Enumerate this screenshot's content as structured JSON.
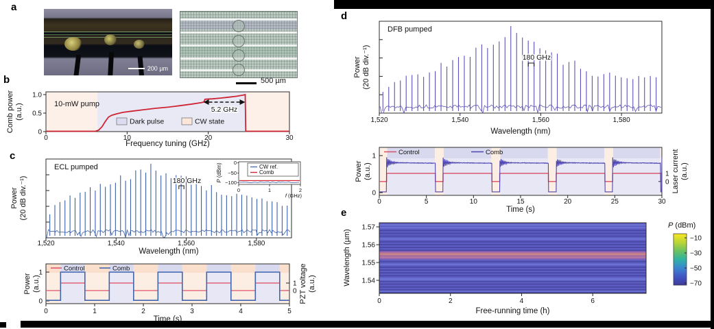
{
  "panels": {
    "a": {
      "letter": "a",
      "scalebar_dark": "200 µm",
      "scalebar_light": "500 µm"
    },
    "b": {
      "letter": "b",
      "ylabel1": "Comb power",
      "ylabel2": "(a.u.)"
    },
    "c": {
      "letter": "c",
      "spec_ylabel1": "Power",
      "spec_ylabel2": "(20 dB div.⁻¹)",
      "time_ylabel1": "Power",
      "time_ylabel2": "(a.u.)",
      "time_right1": "PZT voltage",
      "time_right2": "(a.u.)"
    },
    "d": {
      "letter": "d",
      "spec_ylabel1": "Power",
      "spec_ylabel2": "(20 dB div.⁻¹)",
      "time_ylabel1": "Power",
      "time_ylabel2": "(a.u.)",
      "time_right1": "Laser current",
      "time_right2": "(a.u.)"
    },
    "e": {
      "letter": "e",
      "ylabel": "Wavelength (µm)"
    }
  },
  "chart_data": {
    "comb_power_vs_tuning": {
      "type": "line",
      "xlabel": "Frequency tuning (GHz)",
      "ylabel": "Comb power (a.u.)",
      "xlim": [
        0,
        30
      ],
      "ylim": [
        0,
        1.05
      ],
      "xticks": [
        "0",
        "10",
        "20",
        "30"
      ],
      "yticks": [
        "0",
        "0.5",
        "1.0"
      ],
      "annotation_pump": "10-mW pump",
      "annotation_span": "5.2 GHz",
      "span_from_ghz": 19.4,
      "span_to_ghz": 24.55,
      "legend": [
        {
          "label": "Dark pulse",
          "color": "#dcdcf0"
        },
        {
          "label": "CW state",
          "color": "#fbe6d9"
        }
      ],
      "regions": [
        {
          "state": "CW state",
          "from": 0,
          "to": 6.35,
          "color": "#fdf0e8"
        },
        {
          "state": "Dark pulse",
          "from": 6.35,
          "to": 24.6,
          "color": "#e9e9f6"
        },
        {
          "state": "CW state",
          "from": 24.6,
          "to": 30,
          "color": "#fdf0e8"
        }
      ],
      "series": [
        {
          "name": "Comb power",
          "color": "#cf2332",
          "points": [
            [
              0,
              0.01
            ],
            [
              6.1,
              0.01
            ],
            [
              6.5,
              0.04
            ],
            [
              6.9,
              0.13
            ],
            [
              7.3,
              0.27
            ],
            [
              7.7,
              0.39
            ],
            [
              8.1,
              0.44
            ],
            [
              8.7,
              0.48
            ],
            [
              9.5,
              0.52
            ],
            [
              10.5,
              0.55
            ],
            [
              12,
              0.59
            ],
            [
              13.5,
              0.63
            ],
            [
              15,
              0.66
            ],
            [
              16.5,
              0.7
            ],
            [
              18,
              0.745
            ],
            [
              19.2,
              0.785
            ],
            [
              19.45,
              0.8
            ],
            [
              19.6,
              0.875
            ],
            [
              20.5,
              0.885
            ],
            [
              21.5,
              0.905
            ],
            [
              22.5,
              0.93
            ],
            [
              23.5,
              0.955
            ],
            [
              24.3,
              0.985
            ],
            [
              24.55,
              1.0
            ],
            [
              24.62,
              0.01
            ],
            [
              30,
              0.01
            ]
          ]
        }
      ]
    },
    "ecl_spectrum": {
      "type": "spectrum",
      "label": "ECL pumped",
      "annotation": "180 GHz",
      "xlabel": "Wavelength (nm)",
      "ylabel": "Power (20 dB div.⁻¹)",
      "xlim": [
        1520,
        1590
      ],
      "xticks": [
        {
          "v": 1520,
          "t": "1,520"
        },
        {
          "v": 1540,
          "t": "1,540"
        },
        {
          "v": 1560,
          "t": "1,560"
        },
        {
          "v": 1580,
          "t": "1,580"
        }
      ],
      "line_color": "#3b5fa9",
      "comb": {
        "start_nm": 1521.1,
        "spacing_nm": 1.44,
        "center_nm": 1550.3,
        "env_width_nm": 14.5,
        "floor": 0.33,
        "seed": 7
      },
      "bracket_nm": [
        1557.9,
        1559.34
      ],
      "inset": {
        "ylabel": "P (dBm)",
        "xlabel": "f (GHz)",
        "yticks": [
          "0",
          "−50",
          "−100"
        ],
        "xticks": [
          "0",
          "1",
          "2"
        ],
        "legend": [
          {
            "label": "CW ref.",
            "color": "#4d6fb5"
          },
          {
            "label": "Comb",
            "color": "#cf2332"
          }
        ]
      }
    },
    "ecl_switching": {
      "type": "square",
      "xlabel": "Time (s)",
      "ylabel_left": "Power (a.u.)",
      "ylabel_right": "PZT voltage (a.u.)",
      "xlim": [
        0,
        5
      ],
      "xticks": [
        "0",
        "1",
        "2",
        "3",
        "4",
        "5"
      ],
      "yticks_left": [
        "0",
        "1"
      ],
      "yticks_right": [
        "1",
        "0"
      ],
      "legend": [
        {
          "label": "Control",
          "color": "#e0556b"
        },
        {
          "label": "Comb",
          "color": "#4166ae"
        }
      ],
      "comb": {
        "high": 1.0,
        "low": 0.02,
        "period": 1,
        "on_start": 0.3,
        "on_end": 0.8,
        "color": "#4166ae"
      },
      "control": {
        "high": 0.62,
        "low": 0.36,
        "color": "#e0556b"
      },
      "band_on_color": "#e7e7f5",
      "band_off_color": "#fdeee3",
      "band_on_top": "#d8d9ef",
      "band_off_top": "#fadfcd"
    },
    "dfb_spectrum": {
      "type": "spectrum",
      "label": "DFB pumped",
      "annotation": "180 GHz",
      "xlabel": "Wavelength (nm)",
      "ylabel": "Power (20 dB div.⁻¹)",
      "xlim": [
        1520,
        1590
      ],
      "xticks": [
        {
          "v": 1520,
          "t": "1,520"
        },
        {
          "v": 1540,
          "t": "1,540"
        },
        {
          "v": 1560,
          "t": "1,560"
        },
        {
          "v": 1580,
          "t": "1,580"
        }
      ],
      "line_color": "#5b50b5",
      "comb": {
        "start_nm": 1520.9,
        "spacing_nm": 1.44,
        "center_nm": 1552.6,
        "env_width_nm": 9.5,
        "floor": 0.32,
        "seed": 13
      },
      "bracket_nm": [
        1556.9,
        1558.34
      ]
    },
    "dfb_switching": {
      "type": "square_dips",
      "xlabel": "Time (s)",
      "ylabel_left": "Power (a.u.)",
      "ylabel_right": "Laser current (a.u.)",
      "xlim": [
        0,
        30
      ],
      "xticks": [
        "0",
        "5",
        "10",
        "15",
        "20",
        "25",
        "30"
      ],
      "yticks_left": [
        "0",
        "1"
      ],
      "yticks_right": [
        "1",
        "0"
      ],
      "legend": [
        {
          "label": "Control",
          "color": "#d94f63"
        },
        {
          "label": "Comb",
          "color": "#4c43b0"
        }
      ],
      "comb": {
        "high": 0.81,
        "low": 0.02,
        "overshoot": 0.14,
        "ring_period": 0.16,
        "ring_decay": 0.45,
        "color": "#4c43b0"
      },
      "control": {
        "high": 0.52,
        "low": 0.3,
        "color": "#d94f63"
      },
      "dips": [
        [
          0,
          0.78
        ],
        [
          5.95,
          6.78
        ],
        [
          11.95,
          12.78
        ],
        [
          17.95,
          18.78
        ],
        [
          23.95,
          24.78
        ],
        [
          29.88,
          30
        ]
      ],
      "band_on_color": "#e7e7f5",
      "band_off_color": "#fdeee3",
      "band_on_top": "#d8d9ef"
    },
    "free_running_heatmap": {
      "type": "heatmap",
      "xlabel": "Free-running time (h)",
      "ylabel": "Wavelength (µm)",
      "xlim": [
        0,
        7.5
      ],
      "xticks": [
        "0",
        "2",
        "4",
        "6"
      ],
      "yticks": [
        "1.57",
        "1.56",
        "1.55",
        "1.54"
      ],
      "rows": 50,
      "row_colors": {
        "light": "#5d5dc3",
        "dark": "#4a49a7",
        "accent": "#6b72d3"
      },
      "pink_band": {
        "from": 0.4,
        "to": 0.51,
        "colors": [
          "#8f63b2",
          "#bb7897",
          "#c98781",
          "#a06aa8",
          "#b77b9e"
        ]
      },
      "seed": 3,
      "colorbar": {
        "title_italic": "P",
        "title_rest": " (dBm)",
        "ticks": [
          "−10",
          "−30",
          "−50",
          "−70"
        ],
        "stops": [
          "#f9e821",
          "#bcd534",
          "#6cc25e",
          "#2fb3a3",
          "#3a85cf",
          "#4156c4",
          "#3d3a9b"
        ]
      }
    }
  }
}
